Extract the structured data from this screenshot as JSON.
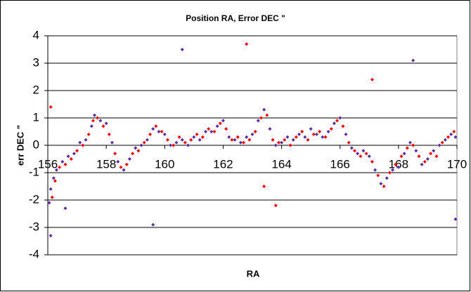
{
  "chart_data": {
    "type": "scatter",
    "title": "Position RA, Error DEC \"",
    "xlabel": "RA",
    "ylabel": "err DEC \"",
    "xlim": [
      156,
      170
    ],
    "xticks": [
      156,
      158,
      160,
      162,
      164,
      166,
      168,
      170
    ],
    "ylim": [
      -4,
      4
    ],
    "yticks": [
      -4,
      -3,
      -2,
      -1,
      0,
      1,
      2,
      3,
      4
    ],
    "grid": true,
    "series": [
      {
        "color": "#5a2ca0",
        "x": [
          156.05,
          156.1,
          156.2,
          156.3,
          156.5,
          156.7,
          156.9,
          157.1,
          157.3,
          157.5,
          157.6,
          157.8,
          158.0,
          158.2,
          158.4,
          158.6,
          158.8,
          159.0,
          159.2,
          159.4,
          159.6,
          159.8,
          160.0,
          160.2,
          160.4,
          160.6,
          160.8,
          161.0,
          161.2,
          161.4,
          161.6,
          161.8,
          162.0,
          162.2,
          162.4,
          162.6,
          162.8,
          163.0,
          163.2,
          163.4,
          163.6,
          163.8,
          164.0,
          164.2,
          164.4,
          164.6,
          164.8,
          165.0,
          165.2,
          165.4,
          165.6,
          165.8,
          166.0,
          166.2,
          166.4,
          166.6,
          166.8,
          167.0,
          167.2,
          167.4,
          167.6,
          167.8,
          168.0,
          168.2,
          168.4,
          168.6,
          168.8,
          169.0,
          169.2,
          169.4,
          169.6,
          169.8,
          169.95,
          160.6,
          159.6,
          168.5,
          156.1,
          169.95,
          156.6
        ],
        "values": [
          -2.1,
          -1.6,
          -1.2,
          -0.9,
          -0.6,
          -0.4,
          -0.3,
          0.1,
          0.2,
          0.7,
          1.1,
          0.9,
          0.8,
          0.1,
          -0.6,
          -0.9,
          -0.5,
          -0.1,
          0.0,
          0.2,
          0.6,
          0.5,
          0.4,
          0.0,
          0.1,
          0.2,
          0.0,
          0.3,
          0.2,
          0.5,
          0.5,
          0.7,
          0.9,
          0.3,
          0.2,
          0.1,
          0.3,
          0.4,
          0.9,
          1.3,
          0.6,
          0.0,
          0.1,
          0.3,
          0.2,
          0.4,
          0.3,
          0.6,
          0.4,
          0.3,
          0.5,
          0.8,
          1.0,
          0.4,
          -0.1,
          -0.3,
          -0.2,
          -0.4,
          -0.9,
          -1.4,
          -1.2,
          -0.9,
          -0.8,
          -0.3,
          0.1,
          -0.2,
          -0.7,
          -0.5,
          -0.2,
          0.0,
          0.2,
          0.4,
          0.3,
          3.5,
          -2.9,
          3.1,
          -3.3,
          -2.7,
          -2.3
        ]
      },
      {
        "color": "#ff0000",
        "x": [
          156.15,
          156.25,
          156.4,
          156.6,
          156.8,
          157.0,
          157.2,
          157.4,
          157.55,
          157.7,
          157.9,
          158.1,
          158.3,
          158.5,
          158.7,
          158.9,
          159.1,
          159.3,
          159.5,
          159.7,
          159.9,
          160.1,
          160.3,
          160.5,
          160.7,
          160.9,
          161.1,
          161.3,
          161.5,
          161.7,
          161.9,
          162.1,
          162.3,
          162.5,
          162.7,
          162.9,
          163.1,
          163.3,
          163.5,
          163.7,
          163.9,
          164.1,
          164.3,
          164.5,
          164.7,
          164.9,
          165.1,
          165.3,
          165.5,
          165.7,
          165.9,
          166.1,
          166.3,
          166.5,
          166.7,
          166.9,
          167.1,
          167.3,
          167.5,
          167.7,
          167.9,
          168.1,
          168.3,
          168.5,
          168.7,
          168.9,
          169.1,
          169.3,
          169.5,
          169.7,
          169.9,
          162.8,
          167.1,
          163.8,
          156.1,
          163.4
        ],
        "values": [
          -1.9,
          -1.3,
          -0.8,
          -0.7,
          -0.5,
          -0.2,
          0.0,
          0.4,
          0.9,
          1.0,
          0.7,
          0.4,
          -0.3,
          -0.8,
          -0.7,
          -0.3,
          -0.2,
          0.1,
          0.4,
          0.7,
          0.5,
          0.2,
          0.0,
          0.3,
          0.1,
          0.2,
          0.4,
          0.3,
          0.6,
          0.5,
          0.8,
          0.6,
          0.2,
          0.3,
          0.1,
          0.2,
          0.5,
          1.0,
          1.1,
          0.2,
          0.1,
          0.2,
          0.0,
          0.3,
          0.5,
          0.2,
          0.4,
          0.5,
          0.3,
          0.6,
          0.9,
          0.7,
          0.1,
          -0.2,
          -0.4,
          -0.3,
          -0.6,
          -1.1,
          -1.5,
          -1.0,
          -0.7,
          -0.4,
          -0.1,
          0.0,
          -0.4,
          -0.6,
          -0.3,
          -0.4,
          0.1,
          0.3,
          0.5,
          3.7,
          2.4,
          -2.2,
          1.4,
          -1.5
        ]
      }
    ]
  }
}
